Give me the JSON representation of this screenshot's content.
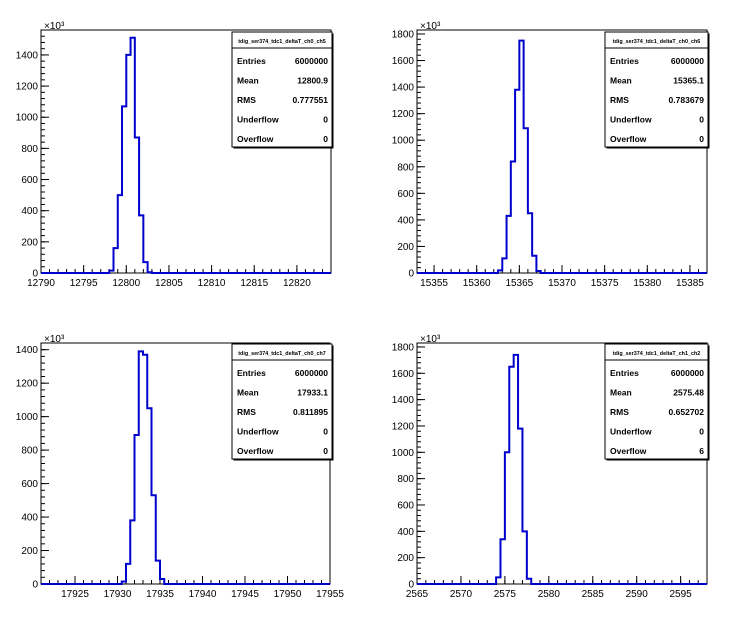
{
  "chart_data": [
    {
      "type": "bar",
      "title": "tdig_ser374_tdc1_deltaT_ch0_ch5",
      "exponent_label": "×10³",
      "xlim": [
        12790,
        12824
      ],
      "x_ticks": [
        12790,
        12795,
        12800,
        12805,
        12810,
        12815,
        12820
      ],
      "ylim": [
        0,
        1560
      ],
      "y_ticks": [
        0,
        200,
        400,
        600,
        800,
        1000,
        1200,
        1400
      ],
      "bin_width": 0.5,
      "bins_x": [
        12797.5,
        12798,
        12798.5,
        12799,
        12799.5,
        12800,
        12800.5,
        12801,
        12801.5,
        12802,
        12802.5,
        12803
      ],
      "values": [
        0,
        15,
        160,
        500,
        1070,
        1400,
        1510,
        870,
        370,
        70,
        5,
        0
      ],
      "stats": [
        [
          "Entries",
          "6000000"
        ],
        [
          "Mean",
          "12800.9"
        ],
        [
          "RMS",
          "0.777551"
        ],
        [
          "Underflow",
          "0"
        ],
        [
          "Overflow",
          "0"
        ]
      ]
    },
    {
      "type": "bar",
      "title": "tdig_ser374_tdc1_deltaT_ch0_ch6",
      "exponent_label": "×10³",
      "xlim": [
        15353,
        15387
      ],
      "x_ticks": [
        15355,
        15360,
        15365,
        15370,
        15375,
        15380,
        15385
      ],
      "ylim": [
        0,
        1830
      ],
      "y_ticks": [
        0,
        200,
        400,
        600,
        800,
        1000,
        1200,
        1400,
        1600,
        1800
      ],
      "bin_width": 0.5,
      "bins_x": [
        15362,
        15362.5,
        15363,
        15363.5,
        15364,
        15364.5,
        15365,
        15365.5,
        15366,
        15366.5,
        15367
      ],
      "values": [
        0,
        20,
        110,
        430,
        840,
        1380,
        1750,
        1090,
        450,
        130,
        15
      ],
      "stats": [
        [
          "Entries",
          "6000000"
        ],
        [
          "Mean",
          "15365.1"
        ],
        [
          "RMS",
          "0.783679"
        ],
        [
          "Underflow",
          "0"
        ],
        [
          "Overflow",
          "0"
        ]
      ]
    },
    {
      "type": "bar",
      "title": "tdig_ser374_tdc1_deltaT_ch0_ch7",
      "exponent_label": "×10³",
      "xlim": [
        17921,
        17955
      ],
      "x_ticks": [
        17925,
        17930,
        17935,
        17940,
        17945,
        17950,
        17955
      ],
      "ylim": [
        0,
        1440
      ],
      "y_ticks": [
        0,
        200,
        400,
        600,
        800,
        1000,
        1200,
        1400
      ],
      "bin_width": 0.5,
      "bins_x": [
        17930,
        17930.5,
        17931,
        17931.5,
        17932,
        17932.5,
        17933,
        17933.5,
        17934,
        17934.5,
        17935
      ],
      "values": [
        0,
        15,
        120,
        380,
        890,
        1390,
        1370,
        1050,
        530,
        140,
        30
      ],
      "stats": [
        [
          "Entries",
          "6000000"
        ],
        [
          "Mean",
          "17933.1"
        ],
        [
          "RMS",
          "0.811895"
        ],
        [
          "Underflow",
          "0"
        ],
        [
          "Overflow",
          "0"
        ]
      ]
    },
    {
      "type": "bar",
      "title": "tdig_ser374_tdc1_deltaT_ch1_ch2",
      "exponent_label": "×10³",
      "xlim": [
        2565,
        2598
      ],
      "x_ticks": [
        2565,
        2570,
        2575,
        2580,
        2585,
        2590,
        2595
      ],
      "ylim": [
        0,
        1830
      ],
      "y_ticks": [
        0,
        200,
        400,
        600,
        800,
        1000,
        1200,
        1400,
        1600,
        1800
      ],
      "bin_width": 0.5,
      "bins_x": [
        2573.5,
        2574,
        2574.5,
        2575,
        2575.5,
        2576,
        2576.5,
        2577,
        2577.5
      ],
      "values": [
        0,
        50,
        340,
        1000,
        1650,
        1740,
        1180,
        400,
        40
      ],
      "stats": [
        [
          "Entries",
          "6000000"
        ],
        [
          "Mean",
          "2575.48"
        ],
        [
          "RMS",
          "0.652702"
        ],
        [
          "Underflow",
          "0"
        ],
        [
          "Overflow",
          "6"
        ]
      ]
    }
  ]
}
